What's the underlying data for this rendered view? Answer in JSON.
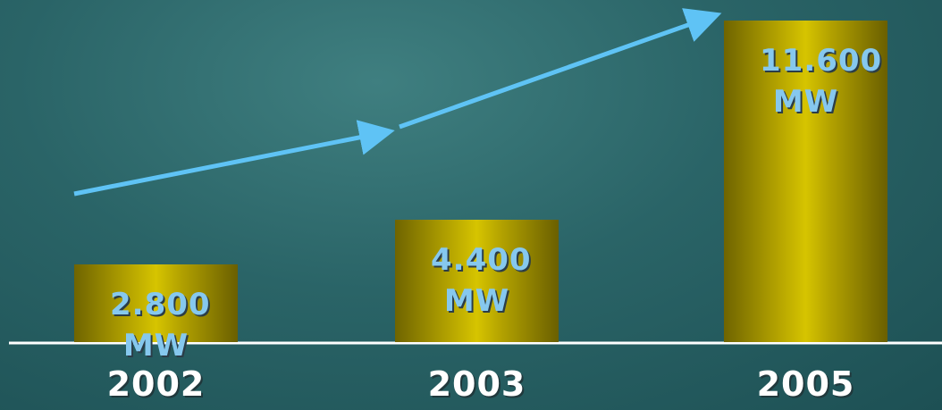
{
  "chart_data": {
    "type": "bar",
    "categories": [
      "2002",
      "2003",
      "2005"
    ],
    "values": [
      2800,
      4400,
      11600
    ],
    "value_labels": [
      "2.800 MW",
      "4.400 MW",
      "11.600 MW"
    ]
  }
}
